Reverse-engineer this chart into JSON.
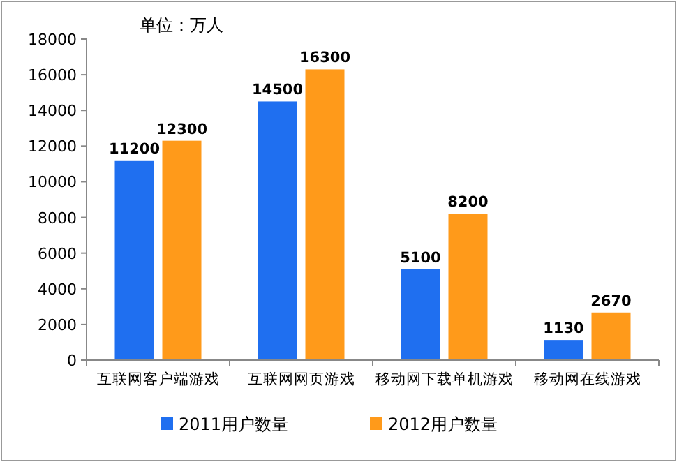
{
  "chart_data": {
    "type": "bar",
    "annotations": [
      "单位：万人"
    ],
    "categories": [
      "互联网客户端游戏",
      "互联网网页游戏",
      "移动网下载单机游戏",
      "移动网在线游戏"
    ],
    "series": [
      {
        "name": "2011用户数量",
        "color": "#1f6ff0",
        "values": [
          11200,
          14500,
          5100,
          1130
        ]
      },
      {
        "name": "2012用户数量",
        "color": "#ff9a1a",
        "values": [
          12300,
          16300,
          8200,
          2670
        ]
      }
    ],
    "ylim": [
      0,
      18000
    ],
    "yticks": [
      0,
      2000,
      4000,
      6000,
      8000,
      10000,
      12000,
      14000,
      16000,
      18000
    ],
    "data_labels": true,
    "legend": "bottom"
  }
}
